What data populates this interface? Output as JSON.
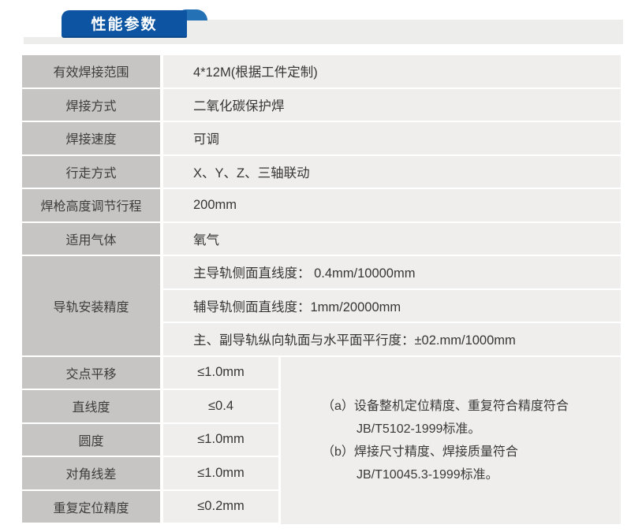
{
  "header": {
    "title": "性能参数"
  },
  "table": {
    "simple_rows": [
      {
        "label": "有效焊接范围",
        "value": "4*12M(根据工件定制)"
      },
      {
        "label": "焊接方式",
        "value": "二氧化碳保护焊"
      },
      {
        "label": "焊接速度",
        "value": "可调"
      },
      {
        "label": "行走方式",
        "value": "X、Y、Z、三轴联动"
      },
      {
        "label": "焊枪高度调节行程",
        "value": "200mm"
      },
      {
        "label": "适用气体",
        "value": "氧气"
      }
    ],
    "merged_row": {
      "label": "导轨安装精度",
      "values": [
        "主导轨侧面直线度： 0.4mm/10000mm",
        "辅导轨侧面直线度：1mm/20000mm",
        "主、副导轨纵向轨面与水平面平行度：±02.mm/1000mm"
      ]
    },
    "precision_rows": [
      {
        "label": "交点平移",
        "value": "≤1.0mm"
      },
      {
        "label": "直线度",
        "value": "≤0.4"
      },
      {
        "label": "圆度",
        "value": "≤1.0mm"
      },
      {
        "label": "对角线差",
        "value": "≤1.0mm"
      },
      {
        "label": "重复定位精度",
        "value": "≤0.2mm"
      }
    ],
    "notes": [
      "（a）设备整机定位精度、重复符合精度符合",
      "JB/T5102-1999标准。",
      "（b）焊接尺寸精度、焊接质量符合",
      "JB/T10045.3-1999标准。"
    ]
  },
  "colors": {
    "tab_blue": "#0d55a2",
    "curl_blue": "#2471b6",
    "band_gray": "#ededeb",
    "label_cell_gray": "#c7c5c3",
    "value_cell_gray": "#efeeec",
    "title_text": "#ffffff",
    "body_text": "#3a3a3a"
  }
}
